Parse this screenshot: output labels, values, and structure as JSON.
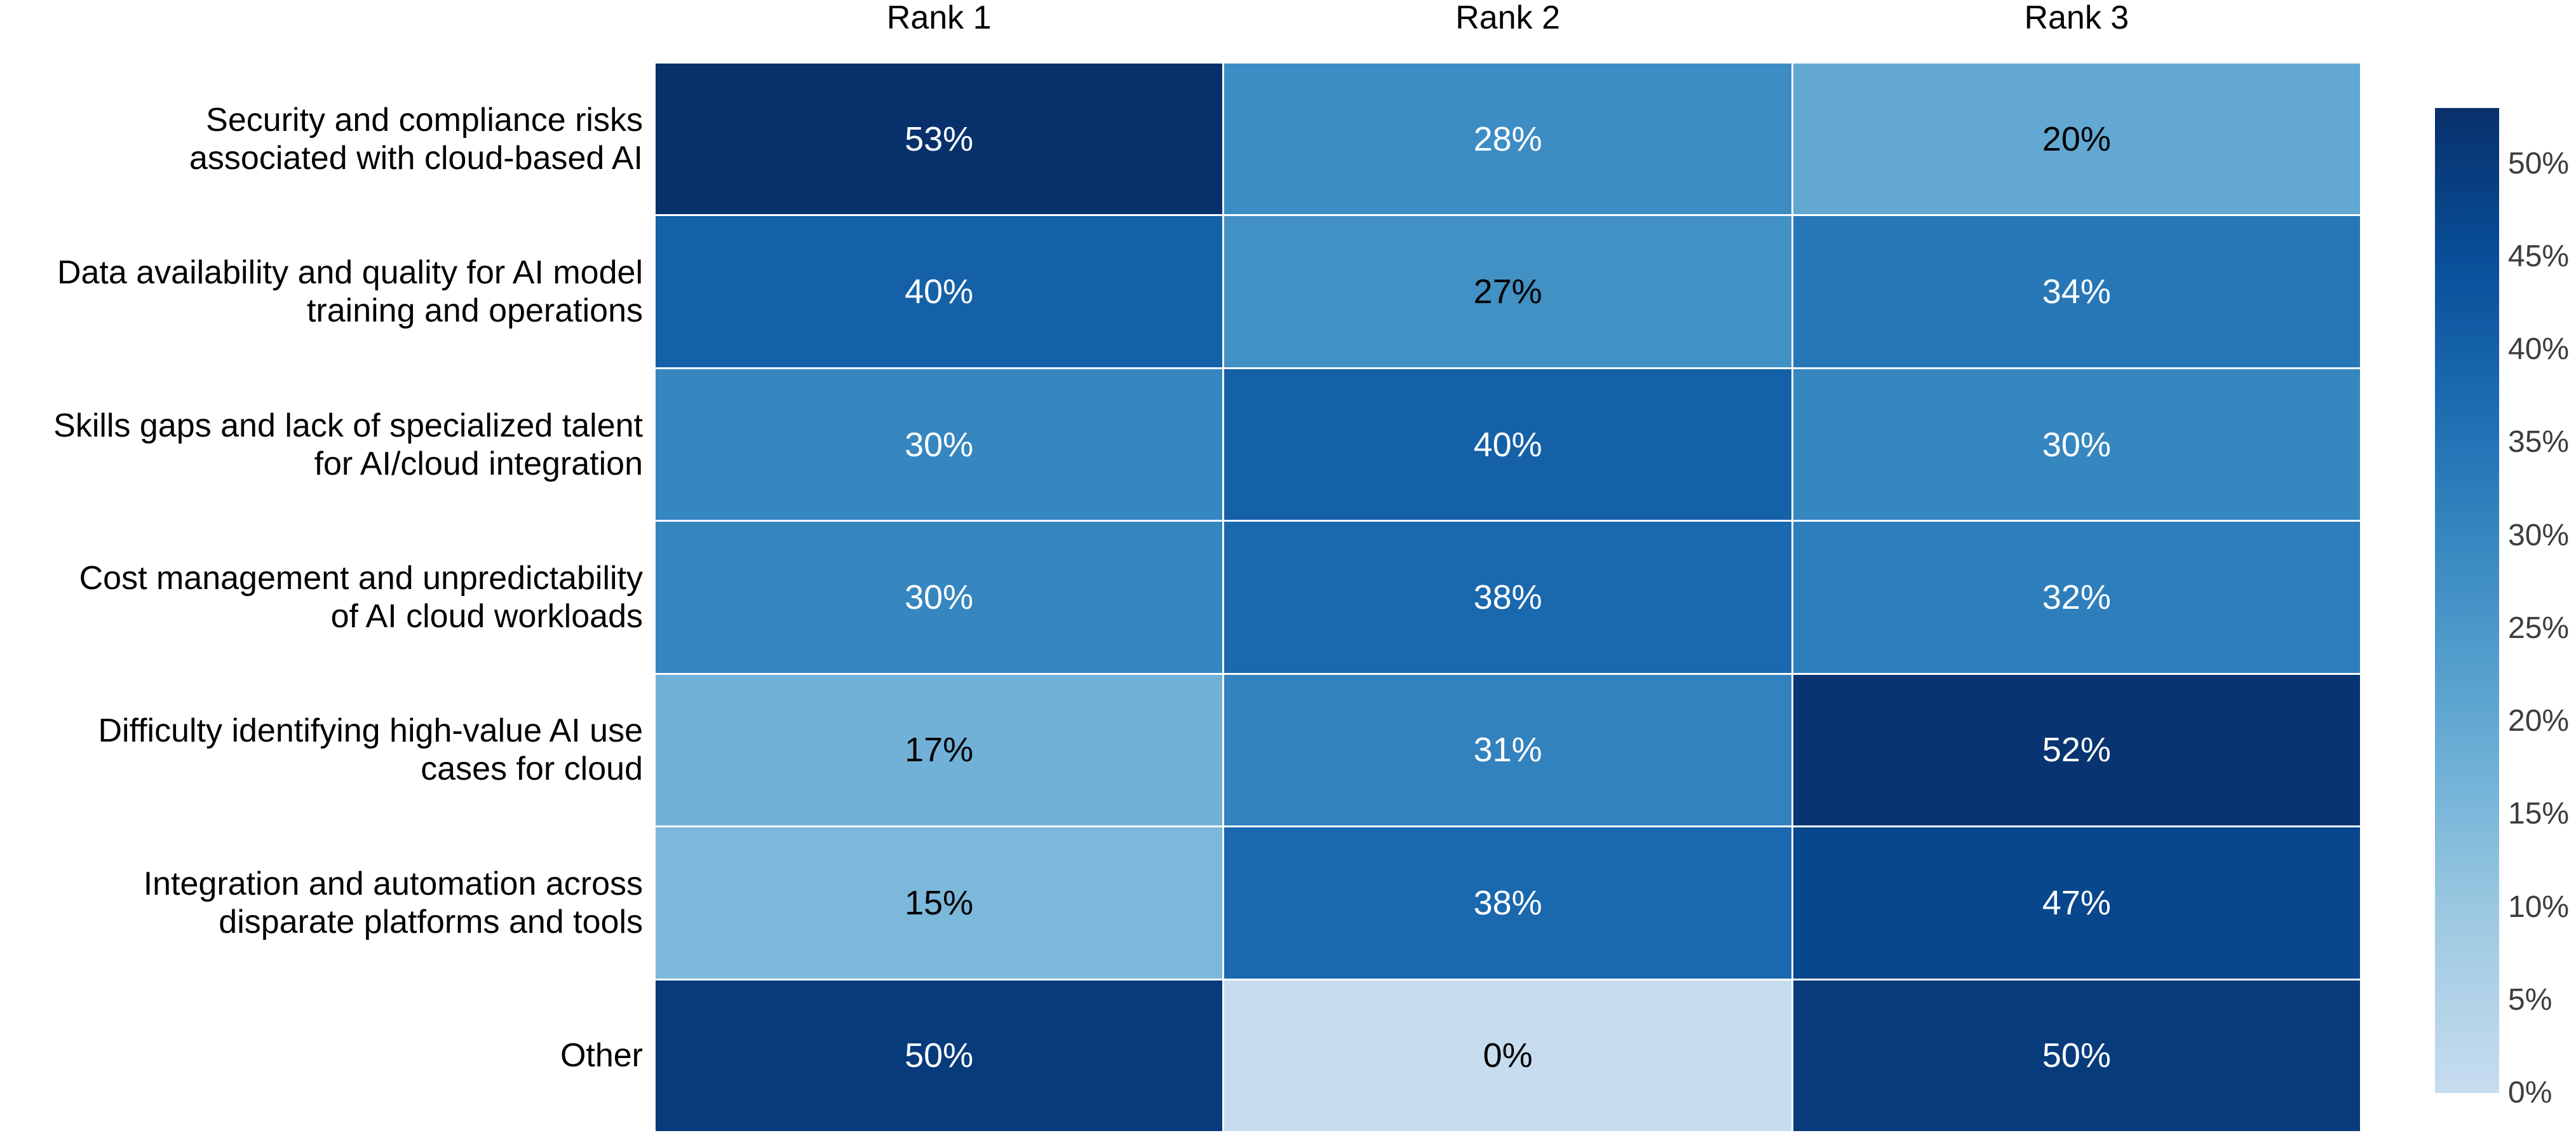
{
  "chart_data": {
    "type": "heatmap",
    "title": "",
    "columns": [
      "Rank 1",
      "Rank 2",
      "Rank 3"
    ],
    "rows": [
      {
        "label": "Security and compliance risks\nassociated with cloud-based AI",
        "values": [
          53,
          28,
          20
        ]
      },
      {
        "label": "Data availability and quality for AI model\ntraining and operations",
        "values": [
          40,
          27,
          34
        ]
      },
      {
        "label": "Skills gaps and lack of specialized talent\nfor AI/cloud integration",
        "values": [
          30,
          40,
          30
        ]
      },
      {
        "label": "Cost management and unpredictability\nof AI cloud workloads",
        "values": [
          30,
          38,
          32
        ]
      },
      {
        "label": "Difficulty identifying high-value AI use\ncases for cloud",
        "values": [
          17,
          31,
          52
        ]
      },
      {
        "label": "Integration and automation across\ndisparate platforms and tools",
        "values": [
          15,
          38,
          47
        ]
      },
      {
        "label": "Other",
        "values": [
          50,
          0,
          50
        ]
      }
    ],
    "value_suffix": "%",
    "grid": "white gaps between cells",
    "legend_position": "right colorbar",
    "colorbar": {
      "min": 0,
      "max": 53,
      "tick_values": [
        0,
        5,
        10,
        15,
        20,
        25,
        30,
        35,
        40,
        45,
        50
      ],
      "tick_labels": [
        "0%",
        "5%",
        "10%",
        "15%",
        "20%",
        "25%",
        "30%",
        "35%",
        "40%",
        "45%",
        "50%"
      ],
      "gradient_stops": [
        {
          "value": 0,
          "color": "#c7dcef"
        },
        {
          "value": 5,
          "color": "#b1d2e8"
        },
        {
          "value": 10,
          "color": "#9ac8e0"
        },
        {
          "value": 15,
          "color": "#7cb8da"
        },
        {
          "value": 20,
          "color": "#62a8d2"
        },
        {
          "value": 25,
          "color": "#4a98c9"
        },
        {
          "value": 30,
          "color": "#3686c0"
        },
        {
          "value": 35,
          "color": "#2373b6"
        },
        {
          "value": 40,
          "color": "#1461a8"
        },
        {
          "value": 45,
          "color": "#084e98"
        },
        {
          "value": 50,
          "color": "#083b7c"
        },
        {
          "value": 53,
          "color": "#08306b"
        }
      ]
    },
    "palette": {
      "0": "#c7dcef",
      "15": "#7cb8da",
      "17": "#71b1d7",
      "20": "#62a8d2",
      "27": "#4191c5",
      "28": "#3d8dc4",
      "30": "#3686c0",
      "31": "#3282be",
      "32": "#2e7ebc",
      "34": "#2777b8",
      "38": "#1a68ae",
      "40": "#1461a8",
      "47": "#08478d",
      "50": "#083b7c",
      "52": "#083471",
      "53": "#08306b"
    },
    "text_colors": {
      "light": "#ffffff",
      "dark": "#000000",
      "white_text_min_value": 28,
      "tick_label": "#3d3d3d"
    },
    "colors": {
      "background": "#ffffff",
      "cell_gap": "#ffffff",
      "darkest": "#08306b",
      "lightest": "#c7dcef"
    }
  }
}
